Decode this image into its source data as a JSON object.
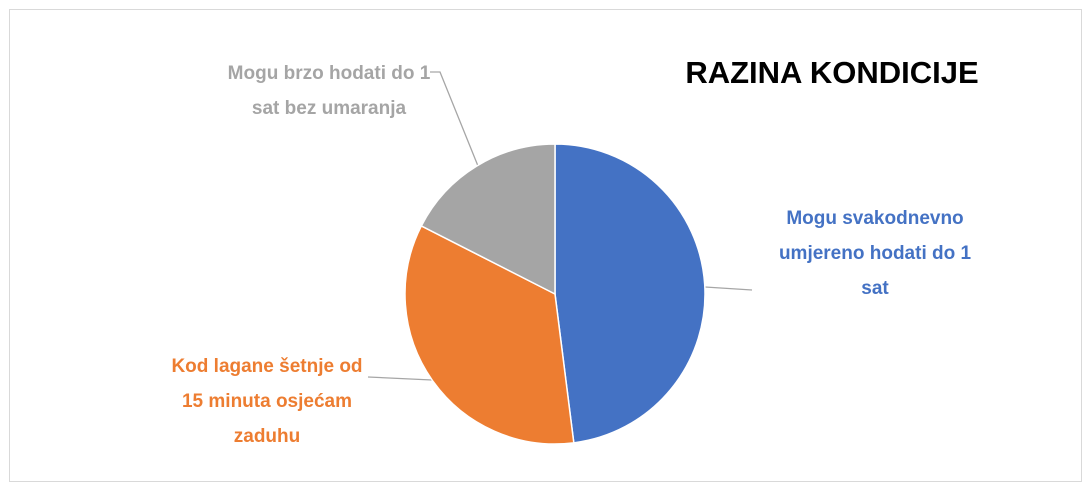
{
  "chart_data": {
    "type": "pie",
    "title": "RAZINA KONDICIJE",
    "categories": [
      "Mogu svakodnevno umjereno hodati do 1 sat",
      "Kod lagane šetnje od 15 minuta osjećam zaduhu",
      "Mogu brzo hodati do 1 sat bez umaranja"
    ],
    "values": [
      48,
      34.5,
      17.5
    ],
    "colors": [
      "#4472c4",
      "#ed7d31",
      "#a5a5a5"
    ]
  }
}
